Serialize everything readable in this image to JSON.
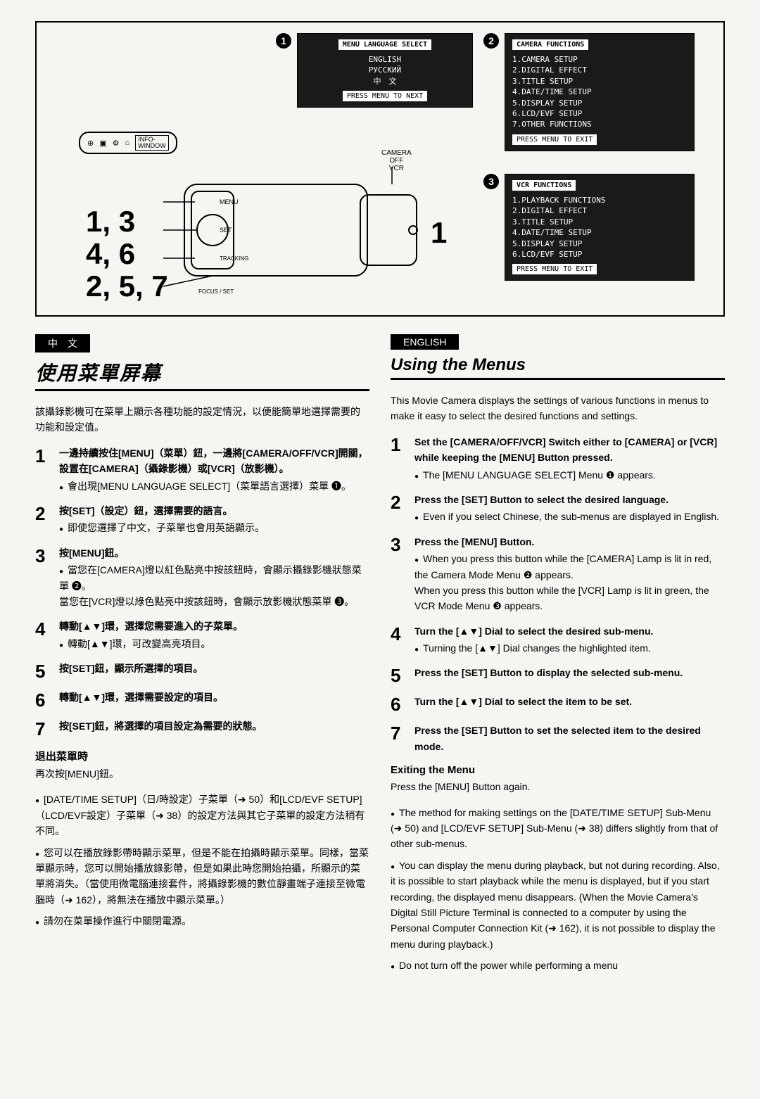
{
  "diagram": {
    "badge1": "1",
    "badge2": "2",
    "badge3": "3",
    "menu1": {
      "title": "MENU LANGUAGE SELECT",
      "lines": [
        "ENGLISH",
        "РУССКИЙ",
        "中　文"
      ],
      "footer": "PRESS MENU TO NEXT"
    },
    "menu2": {
      "title": "CAMERA FUNCTIONS",
      "lines": [
        "1.CAMERA SETUP",
        "2.DIGITAL EFFECT",
        "3.TITLE SETUP",
        "4.DATE/TIME SETUP",
        "5.DISPLAY SETUP",
        "6.LCD/EVF SETUP",
        "7.OTHER FUNCTIONS"
      ],
      "footer": "PRESS MENU TO EXIT"
    },
    "menu3": {
      "title": "VCR FUNCTIONS",
      "lines": [
        "1.PLAYBACK FUNCTIONS",
        "2.DIGITAL EFFECT",
        "3.TITLE SETUP",
        "4.DATE/TIME SETUP",
        "5.DISPLAY SETUP",
        "6.LCD/EVF SETUP"
      ],
      "footer": "PRESS MENU TO EXIT"
    },
    "info_window_label": "INFO-\nWINDOW",
    "camera_switch": "CAMERA\nOFF\nVCR",
    "camera_big1": "1",
    "left_numbers": "1, 3\n4, 6\n2, 5, 7",
    "dial_labels": [
      "MENU",
      "SET",
      "TRACKING",
      "FOCUS / SET"
    ]
  },
  "chinese": {
    "lang_tag": "中　文",
    "title": "使用菜單屏幕",
    "intro": "該攝錄影機可在菜單上顯示各種功能的設定情況，以便能簡單地選擇需要的功能和設定值。",
    "steps": [
      {
        "n": "1",
        "main": "一邊持續按住[MENU]（菜單）鈕，一邊將[CAMERA/OFF/VCR]開關，設置在[CAMERA]（攝錄影機）或[VCR]（放影機）。",
        "bullets": [
          "會出現[MENU LANGUAGE SELECT]（菜單語言選擇）菜單 ❶。"
        ]
      },
      {
        "n": "2",
        "main": "按[SET]（設定）鈕，選擇需要的語言。",
        "bullets": [
          "即使您選擇了中文，子菜單也會用英語顯示。"
        ]
      },
      {
        "n": "3",
        "main": "按[MENU]鈕。",
        "bullets": [
          "當您在[CAMERA]燈以紅色點亮中按該鈕時，會顯示攝錄影機狀態菜單 ❷。\n當您在[VCR]燈以綠色點亮中按該鈕時，會顯示放影機狀態菜單 ❸。"
        ]
      },
      {
        "n": "4",
        "main": "轉動[▲▼]環，選擇您需要進入的子菜單。",
        "bullets": [
          "轉動[▲▼]環，可改變高亮項目。"
        ]
      },
      {
        "n": "5",
        "main": "按[SET]鈕，顯示所選擇的項目。",
        "bullets": []
      },
      {
        "n": "6",
        "main": "轉動[▲▼]環，選擇需要設定的項目。",
        "bullets": []
      },
      {
        "n": "7",
        "main": "按[SET]鈕，將選擇的項目設定為需要的狀態。",
        "bullets": []
      }
    ],
    "exit_head": "退出菜單時",
    "exit_body": "再次按[MENU]鈕。",
    "notes": [
      "[DATE/TIME SETUP]（日/時設定）子菜單（➜ 50）和[LCD/EVF SETUP]（LCD/EVF設定）子菜單（➜ 38）的設定方法與其它子菜單的設定方法稍有不同。",
      "您可以在播放錄影帶時顯示菜單，但是不能在拍攝時顯示菜單。同樣，當菜單顯示時，您可以開始播放錄影帶，但是如果此時您開始拍攝，所顯示的菜單將消失。（當使用微電腦連接套件，將攝錄影機的數位靜畫端子連接至微電腦時（➜ 162），將無法在播放中顯示菜單。）",
      "請勿在菜單操作進行中關閉電源。"
    ]
  },
  "english": {
    "lang_tag": "ENGLISH",
    "title": "Using the Menus",
    "intro": "This Movie Camera displays the settings of various functions in menus to make it easy to select the desired functions and settings.",
    "steps": [
      {
        "n": "1",
        "main": "Set the [CAMERA/OFF/VCR] Switch either to [CAMERA] or [VCR] while keeping the [MENU] Button pressed.",
        "bullets": [
          "The [MENU LANGUAGE SELECT] Menu ❶ appears."
        ]
      },
      {
        "n": "2",
        "main": "Press the [SET] Button to select the desired language.",
        "bullets": [
          "Even if you select Chinese, the sub-menus are displayed in English."
        ]
      },
      {
        "n": "3",
        "main": "Press the [MENU] Button.",
        "bullets": [
          "When you press this button while the [CAMERA] Lamp is lit in red, the Camera Mode Menu ❷ appears.\nWhen you press this button while the [VCR] Lamp is lit in green, the VCR Mode Menu ❸ appears."
        ]
      },
      {
        "n": "4",
        "main": "Turn the [▲▼] Dial to select the desired sub-menu.",
        "bullets": [
          "Turning the [▲▼] Dial changes the highlighted item."
        ]
      },
      {
        "n": "5",
        "main": "Press the [SET] Button to display the selected sub-menu.",
        "bullets": []
      },
      {
        "n": "6",
        "main": "Turn the [▲▼] Dial to select the item to be set.",
        "bullets": []
      },
      {
        "n": "7",
        "main": "Press the [SET] Button to set the selected item to the desired mode.",
        "bullets": []
      }
    ],
    "exit_head": "Exiting the Menu",
    "exit_body": "Press the [MENU] Button again.",
    "notes": [
      "The method for making settings on the [DATE/TIME SETUP] Sub-Menu (➜ 50) and [LCD/EVF SETUP] Sub-Menu (➜ 38) differs slightly from that of other sub-menus.",
      "You can display the menu during playback, but not during recording. Also, it is possible to start playback while the menu is displayed, but if you start recording, the displayed menu disappears. (When the Movie Camera's Digital Still Picture Terminal is connected to a computer by using the Personal Computer Connection Kit (➜ 162), it is not possible to display the menu during playback.)",
      "Do not turn off the power while performing a menu"
    ]
  }
}
